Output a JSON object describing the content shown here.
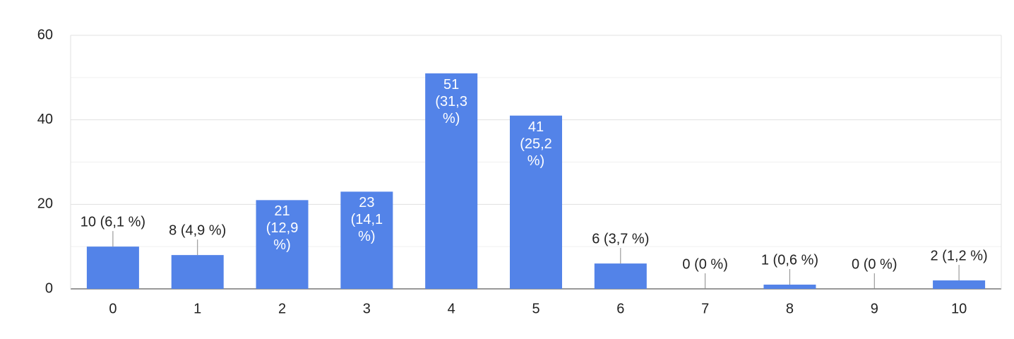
{
  "chart_data": {
    "type": "bar",
    "categories": [
      "0",
      "1",
      "2",
      "3",
      "4",
      "5",
      "6",
      "7",
      "8",
      "9",
      "10"
    ],
    "values": [
      10,
      8,
      21,
      23,
      51,
      41,
      6,
      0,
      1,
      0,
      2
    ],
    "value_labels": [
      "10 (6,1 %)",
      "8 (4,9 %)",
      "21 (12,9 %)",
      "23 (14,1 %)",
      "51 (31,3 %)",
      "41 (25,2 %)",
      "6 (3,7 %)",
      "0 (0 %)",
      "1 (0,6 %)",
      "0 (0 %)",
      "2 (1,2 %)"
    ],
    "color": "#5383e8",
    "ylim": [
      0,
      60
    ],
    "yticks": [
      0,
      20,
      40,
      60
    ],
    "y_minor_ticks": [
      10,
      30,
      50
    ],
    "grid": true
  }
}
